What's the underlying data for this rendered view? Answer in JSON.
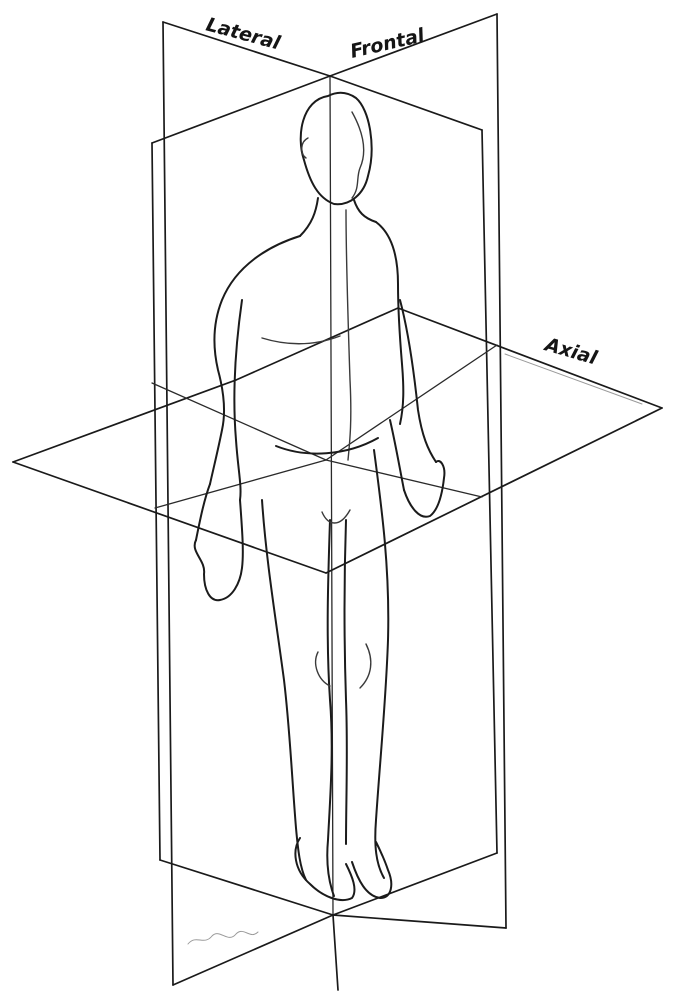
{
  "labels": {
    "lateral": "Lateral",
    "frontal": "Frontal",
    "axial": "Axial"
  },
  "colors": {
    "line": "#1a1a1a",
    "background": "#ffffff"
  }
}
